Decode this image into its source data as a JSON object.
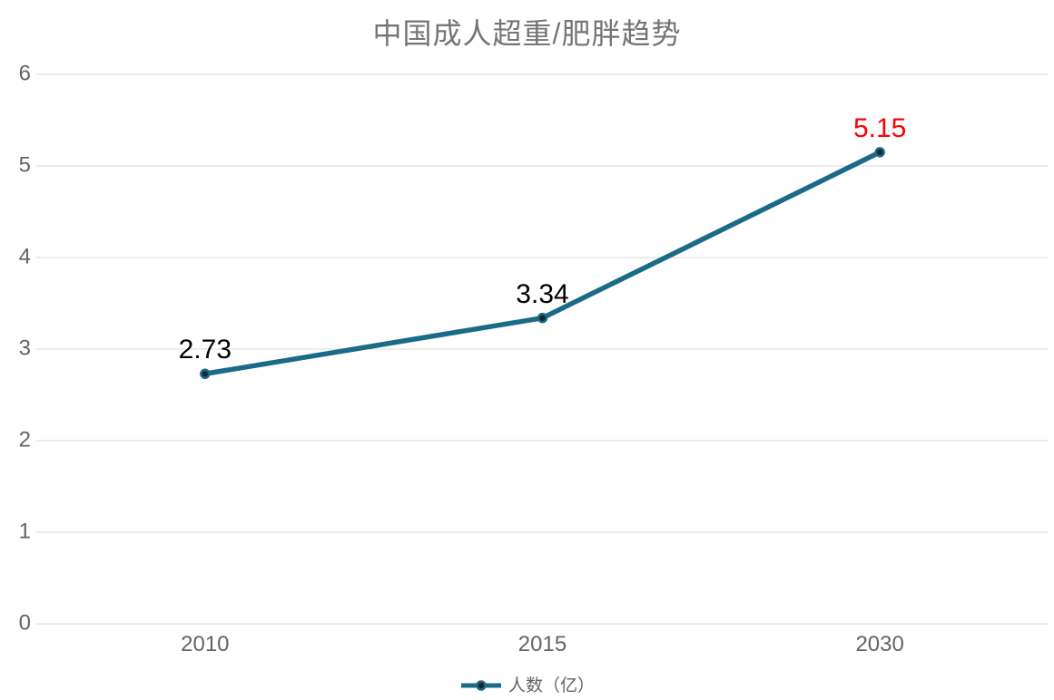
{
  "title": "中国成人超重/肥胖趋势",
  "legend": {
    "label": "人数（亿）"
  },
  "colors": {
    "line": "#1a6a88",
    "marker_fill": "#0f2836",
    "data_label": "#000000",
    "highlight_label": "#ff0000",
    "axis_text": "#646464",
    "title_text": "#757575",
    "gridline": "#d9d9d9"
  },
  "chart_data": {
    "type": "line",
    "title": "中国成人超重/肥胖趋势",
    "categories": [
      "2010",
      "2015",
      "2030"
    ],
    "series": [
      {
        "name": "人数（亿）",
        "values": [
          2.73,
          3.34,
          5.15
        ]
      }
    ],
    "data_labels": [
      "2.73",
      "3.34",
      "5.15"
    ],
    "highlight_index": 2,
    "xlabel": "",
    "ylabel": "",
    "ylim": [
      0,
      6
    ],
    "yticks": [
      0,
      1,
      2,
      3,
      4,
      5,
      6
    ],
    "grid": true,
    "legend_position": "bottom"
  }
}
